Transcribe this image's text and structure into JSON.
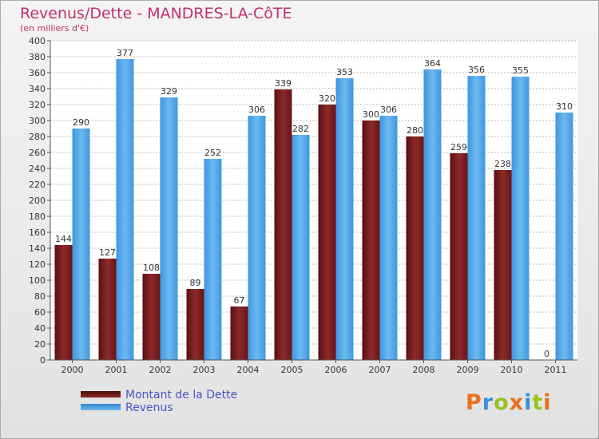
{
  "chart_data": {
    "type": "bar",
    "title": "Revenus/Dette - MANDRES-LA-CôTE",
    "subtitle": "(en milliers d'€)",
    "categories": [
      "2000",
      "2001",
      "2002",
      "2003",
      "2004",
      "2005",
      "2006",
      "2007",
      "2008",
      "2009",
      "2010",
      "2011"
    ],
    "series": [
      {
        "name": "Montant de la Dette",
        "values": [
          144,
          127,
          108,
          89,
          67,
          339,
          320,
          300,
          280,
          259,
          238,
          0
        ],
        "color": "#7a1c1c"
      },
      {
        "name": "Revenus",
        "values": [
          290,
          377,
          329,
          252,
          306,
          282,
          353,
          306,
          364,
          356,
          355,
          310
        ],
        "color": "#4ea3e6"
      }
    ],
    "ylim": [
      0,
      400
    ],
    "yticks": [
      0,
      20,
      40,
      60,
      80,
      100,
      120,
      140,
      160,
      180,
      200,
      220,
      240,
      260,
      280,
      300,
      320,
      340,
      360,
      380,
      400
    ],
    "grid": true,
    "legend": "bottom-left"
  },
  "logo": {
    "text": "Proxiti",
    "colors": [
      "#e8701c",
      "#3a8fd6",
      "#9ac21f",
      "#e8701c",
      "#3a8fd6",
      "#9ac21f",
      "#e8701c"
    ]
  }
}
